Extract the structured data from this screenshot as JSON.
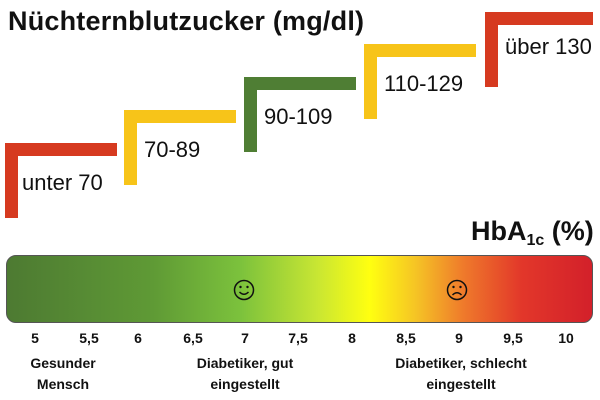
{
  "glucose": {
    "title": "Nüchternblutzucker (mg/dl)",
    "steps": [
      {
        "label": "unter 70",
        "color": "#d63a20"
      },
      {
        "label": "70-89",
        "color": "#f7c419"
      },
      {
        "label": "90-109",
        "color": "#4f7e34"
      },
      {
        "label": "110-129",
        "color": "#f7c419"
      },
      {
        "label": "über 130",
        "color": "#d63a20"
      }
    ]
  },
  "hba1c": {
    "title_main": "HbA",
    "title_sub": "1c",
    "title_unit": " (%)",
    "scale_min": 5,
    "scale_max": 10,
    "ticks": [
      "5",
      "5,5",
      "6",
      "6,5",
      "7",
      "7,5",
      "8",
      "8,5",
      "9",
      "9,5",
      "10"
    ],
    "faces": [
      {
        "name": "smiley-face-icon",
        "at": 7
      },
      {
        "name": "frowning-face-icon",
        "at": 9
      }
    ],
    "zones": [
      {
        "line1": "Gesunder",
        "line2": "Mensch",
        "at": 5.3
      },
      {
        "line1": "Diabetiker, gut",
        "line2": "eingestellt",
        "at": 7
      },
      {
        "line1": "Diabetiker, schlecht",
        "line2": "eingestellt",
        "at": 9
      }
    ],
    "gradient_colors": [
      "#4d7a32",
      "#7cc23c",
      "#ffff10",
      "#ef7a2b",
      "#d3202a"
    ]
  }
}
